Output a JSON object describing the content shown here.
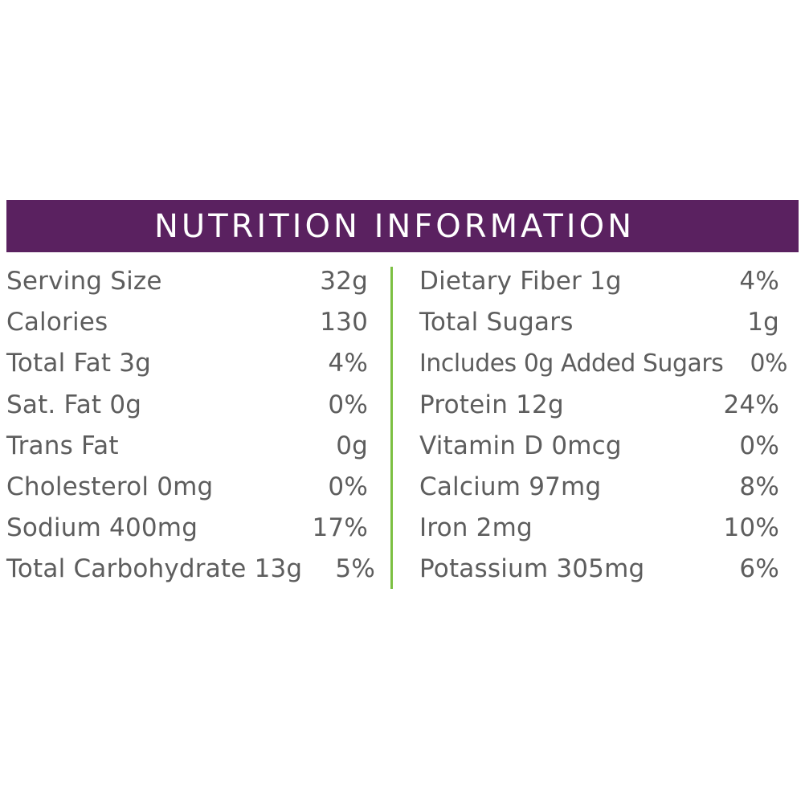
{
  "title": "NUTRITION INFORMATION",
  "colors": {
    "title_bar": "#5a2160",
    "title_text": "#ffffff",
    "divider": "#7cc043",
    "body_text": "#5d5d5d"
  },
  "left_column": [
    {
      "label": "Serving Size",
      "value": "32g"
    },
    {
      "label": "Calories",
      "value": "130"
    },
    {
      "label": "Total Fat 3g",
      "value": "4%"
    },
    {
      "label": "Sat. Fat 0g",
      "value": "0%"
    },
    {
      "label": "Trans Fat",
      "value": "0g"
    },
    {
      "label": "Cholesterol 0mg",
      "value": "0%"
    },
    {
      "label": "Sodium 400mg",
      "value": "17%"
    },
    {
      "label": "Total Carbohydrate 13g",
      "value": "5%"
    }
  ],
  "right_column": [
    {
      "label": "Dietary Fiber 1g",
      "value": "4%"
    },
    {
      "label": "Total Sugars",
      "value": "1g"
    },
    {
      "label": "Includes 0g Added Sugars",
      "value": "0%"
    },
    {
      "label": "Protein 12g",
      "value": "24%"
    },
    {
      "label": "Vitamin D 0mcg",
      "value": "0%"
    },
    {
      "label": "Calcium 97mg",
      "value": "8%"
    },
    {
      "label": "Iron 2mg",
      "value": "10%"
    },
    {
      "label": "Potassium 305mg",
      "value": "6%"
    }
  ]
}
